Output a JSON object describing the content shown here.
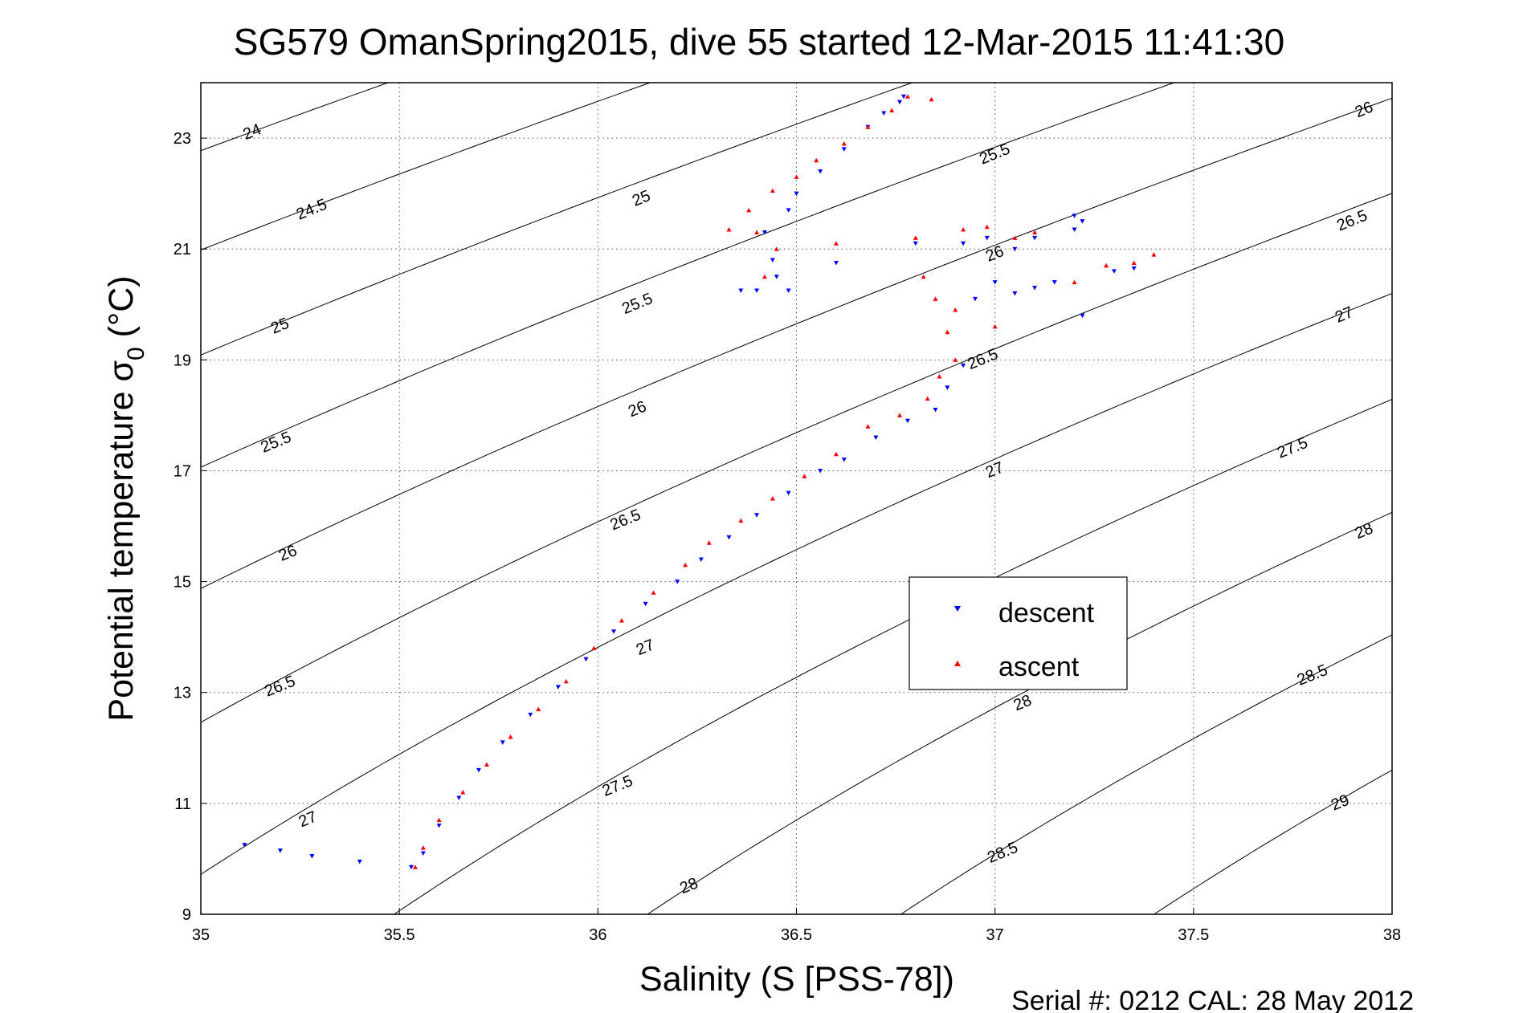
{
  "chart_data": {
    "type": "scatter",
    "title": "SG579 OmanSpring2015, dive 55 started 12-Mar-2015 11:41:30",
    "xlabel": "Salinity (S [PSS-78])",
    "ylabel": {
      "main": "Potential temperature σ",
      "sub": "0",
      "unit": " (°C)"
    },
    "xlim": [
      35,
      38
    ],
    "ylim": [
      9,
      24
    ],
    "xticks": [
      35,
      35.5,
      36,
      36.5,
      37,
      37.5,
      38
    ],
    "xtick_labels": [
      "35",
      "35.5",
      "36",
      "36.5",
      "37",
      "37.5",
      "38"
    ],
    "yticks": [
      9,
      11,
      13,
      15,
      17,
      19,
      21,
      23
    ],
    "ytick_labels": [
      "9",
      "11",
      "13",
      "15",
      "17",
      "19",
      "21",
      "23"
    ],
    "grid": true,
    "legend_position": "center-right",
    "footer": "Serial #: 0212  CAL: 28 May 2012",
    "density_contours": {
      "levels": [
        24,
        24.5,
        25,
        25.5,
        26,
        26.5,
        27,
        27.5,
        28,
        28.5,
        29
      ],
      "labels": [
        {
          "text": "24",
          "x": 35.13,
          "y": 23.1
        },
        {
          "text": "24.5",
          "x": 35.28,
          "y": 21.7
        },
        {
          "text": "25",
          "x": 35.2,
          "y": 19.6
        },
        {
          "text": "25.5",
          "x": 35.19,
          "y": 17.5
        },
        {
          "text": "26",
          "x": 35.22,
          "y": 15.5
        },
        {
          "text": "26.5",
          "x": 35.2,
          "y": 13.1
        },
        {
          "text": "27",
          "x": 35.27,
          "y": 10.7
        },
        {
          "text": "25",
          "x": 36.11,
          "y": 21.9
        },
        {
          "text": "25.5",
          "x": 36.1,
          "y": 20.0
        },
        {
          "text": "26",
          "x": 36.1,
          "y": 18.1
        },
        {
          "text": "26.5",
          "x": 36.07,
          "y": 16.1
        },
        {
          "text": "27",
          "x": 36.12,
          "y": 13.8
        },
        {
          "text": "27.5",
          "x": 36.05,
          "y": 11.3
        },
        {
          "text": "28",
          "x": 36.23,
          "y": 9.5
        },
        {
          "text": "25.5",
          "x": 37.0,
          "y": 22.7
        },
        {
          "text": "26",
          "x": 37.0,
          "y": 20.9
        },
        {
          "text": "26.5",
          "x": 36.97,
          "y": 19.0
        },
        {
          "text": "27",
          "x": 37.0,
          "y": 17.0
        },
        {
          "text": "28",
          "x": 37.07,
          "y": 12.8
        },
        {
          "text": "28.5",
          "x": 37.02,
          "y": 10.1
        },
        {
          "text": "26",
          "x": 37.93,
          "y": 23.5
        },
        {
          "text": "26.5",
          "x": 37.9,
          "y": 21.5
        },
        {
          "text": "27",
          "x": 37.88,
          "y": 19.8
        },
        {
          "text": "27.5",
          "x": 37.75,
          "y": 17.4
        },
        {
          "text": "28",
          "x": 37.93,
          "y": 15.9
        },
        {
          "text": "28.5",
          "x": 37.8,
          "y": 13.3
        },
        {
          "text": "29",
          "x": 37.87,
          "y": 11.0
        }
      ]
    },
    "series": [
      {
        "name": "descent",
        "color": "#0000ff",
        "marker": "triangle-down",
        "points": [
          [
            35.11,
            10.25
          ],
          [
            35.2,
            10.15
          ],
          [
            35.28,
            10.05
          ],
          [
            35.4,
            9.95
          ],
          [
            35.53,
            9.85
          ],
          [
            35.56,
            10.1
          ],
          [
            35.6,
            10.6
          ],
          [
            35.65,
            11.1
          ],
          [
            35.7,
            11.6
          ],
          [
            35.76,
            12.1
          ],
          [
            35.83,
            12.6
          ],
          [
            35.9,
            13.1
          ],
          [
            35.97,
            13.6
          ],
          [
            36.04,
            14.1
          ],
          [
            36.12,
            14.6
          ],
          [
            36.2,
            15.0
          ],
          [
            36.26,
            15.4
          ],
          [
            36.33,
            15.8
          ],
          [
            36.4,
            16.2
          ],
          [
            36.48,
            16.6
          ],
          [
            36.56,
            17.0
          ],
          [
            36.62,
            17.2
          ],
          [
            36.7,
            17.6
          ],
          [
            36.78,
            17.9
          ],
          [
            36.85,
            18.1
          ],
          [
            36.88,
            18.5
          ],
          [
            36.92,
            18.9
          ],
          [
            36.48,
            20.25
          ],
          [
            36.45,
            20.5
          ],
          [
            36.44,
            20.8
          ],
          [
            36.42,
            21.3
          ],
          [
            36.48,
            21.7
          ],
          [
            36.5,
            22.0
          ],
          [
            36.56,
            22.4
          ],
          [
            36.62,
            22.8
          ],
          [
            36.68,
            23.2
          ],
          [
            36.72,
            23.45
          ],
          [
            36.76,
            23.65
          ],
          [
            36.77,
            23.75
          ],
          [
            36.4,
            20.25
          ],
          [
            36.36,
            20.25
          ],
          [
            36.6,
            20.75
          ],
          [
            36.8,
            21.1
          ],
          [
            36.92,
            21.1
          ],
          [
            36.98,
            21.2
          ],
          [
            37.0,
            20.4
          ],
          [
            36.95,
            20.1
          ],
          [
            37.05,
            20.2
          ],
          [
            37.1,
            20.3
          ],
          [
            37.15,
            20.4
          ],
          [
            37.2,
            21.35
          ],
          [
            37.22,
            21.5
          ],
          [
            37.1,
            21.2
          ],
          [
            37.05,
            21.0
          ],
          [
            37.2,
            21.6
          ],
          [
            37.22,
            19.8
          ],
          [
            37.3,
            20.6
          ],
          [
            37.35,
            20.65
          ]
        ]
      },
      {
        "name": "ascent",
        "color": "#ff0000",
        "marker": "triangle-up",
        "points": [
          [
            35.54,
            9.85
          ],
          [
            35.56,
            10.2
          ],
          [
            35.6,
            10.7
          ],
          [
            35.66,
            11.2
          ],
          [
            35.72,
            11.7
          ],
          [
            35.78,
            12.2
          ],
          [
            35.85,
            12.7
          ],
          [
            35.92,
            13.2
          ],
          [
            35.99,
            13.8
          ],
          [
            36.06,
            14.3
          ],
          [
            36.14,
            14.8
          ],
          [
            36.22,
            15.3
          ],
          [
            36.28,
            15.7
          ],
          [
            36.36,
            16.1
          ],
          [
            36.44,
            16.5
          ],
          [
            36.52,
            16.9
          ],
          [
            36.6,
            17.3
          ],
          [
            36.68,
            17.8
          ],
          [
            36.76,
            18.0
          ],
          [
            36.83,
            18.3
          ],
          [
            36.86,
            18.7
          ],
          [
            36.9,
            19.0
          ],
          [
            36.33,
            21.35
          ],
          [
            36.38,
            21.7
          ],
          [
            36.44,
            22.05
          ],
          [
            36.5,
            22.3
          ],
          [
            36.55,
            22.6
          ],
          [
            36.62,
            22.9
          ],
          [
            36.68,
            23.2
          ],
          [
            36.74,
            23.5
          ],
          [
            36.78,
            23.75
          ],
          [
            36.84,
            23.7
          ],
          [
            36.4,
            21.3
          ],
          [
            36.45,
            21.0
          ],
          [
            36.42,
            20.5
          ],
          [
            36.6,
            21.1
          ],
          [
            36.8,
            21.2
          ],
          [
            36.92,
            21.35
          ],
          [
            36.98,
            21.4
          ],
          [
            37.05,
            21.2
          ],
          [
            37.1,
            21.3
          ],
          [
            36.82,
            20.5
          ],
          [
            36.85,
            20.1
          ],
          [
            36.9,
            19.9
          ],
          [
            36.88,
            19.5
          ],
          [
            37.0,
            19.6
          ],
          [
            37.2,
            20.4
          ],
          [
            37.35,
            20.75
          ],
          [
            37.4,
            20.9
          ],
          [
            37.28,
            20.7
          ]
        ]
      }
    ]
  }
}
